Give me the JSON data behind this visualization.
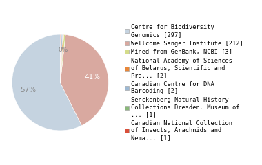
{
  "labels": [
    "Centre for Biodiversity\nGenomics [297]",
    "Wellcome Sanger Institute [212]",
    "Mined from GenBank, NCBI [3]",
    "National Academy of Sciences\nof Belarus, Scientific and\nPra... [2]",
    "Canadian Centre for DNA\nBarcoding [2]",
    "Senckenberg Natural History\nCollections Dresden. Museum of\n... [1]",
    "Canadian National Collection\nof Insects, Arachnids and\nNema... [1]"
  ],
  "values": [
    297,
    212,
    3,
    2,
    2,
    1,
    1
  ],
  "colors": [
    "#c5d3e0",
    "#d9a9a0",
    "#d4dc8a",
    "#e8873a",
    "#9db8d2",
    "#8ab87a",
    "#d94f3a"
  ],
  "startangle": 90,
  "pct_colors": {
    "57%": "#888888",
    "40%": "#ffffff",
    "0%": "#888888"
  },
  "legend_fontsize": 6.2,
  "background_color": "#ffffff"
}
